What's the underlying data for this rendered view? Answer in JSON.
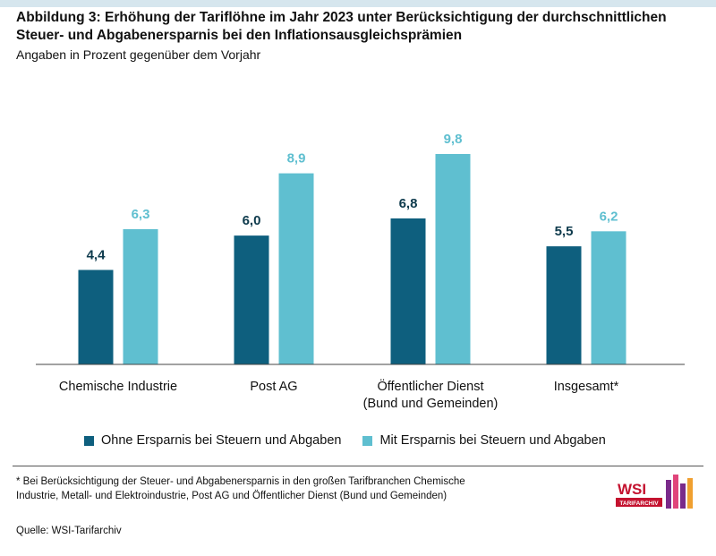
{
  "header": {
    "title": "Abbildung 3: Erhöhung der Tariflöhne im Jahr 2023 unter Berücksichtigung der durchschnittlichen Steuer- und Abgabenersparnis bei den Inflationsausgleichsprämien",
    "subtitle": "Angaben in Prozent gegenüber dem Vorjahr"
  },
  "chart_data": {
    "type": "bar",
    "categories": [
      [
        "Chemische Industrie"
      ],
      [
        "Post AG"
      ],
      [
        "Öffentlicher Dienst",
        "(Bund und Gemeinden)"
      ],
      [
        "Insgesamt*"
      ]
    ],
    "series": [
      {
        "name": "Ohne Ersparnis bei Steuern und Abgaben",
        "values": [
          4.4,
          6.0,
          6.8,
          5.5
        ],
        "labels": [
          "4,4",
          "6,0",
          "6,8",
          "5,5"
        ],
        "color": "#0e5f7e"
      },
      {
        "name": "Mit Ersparnis bei Steuern und Abgaben",
        "values": [
          6.3,
          8.9,
          9.8,
          6.2
        ],
        "labels": [
          "6,3",
          "8,9",
          "9,8",
          "6,2"
        ],
        "color": "#5fbfd0"
      }
    ],
    "ylim": [
      0,
      10
    ],
    "grid": false,
    "legend_position": "bottom"
  },
  "footer": {
    "footnote_line1": "* Bei Berücksichtigung der Steuer- und Abgabenersparnis in den großen Tarifbranchen Chemische",
    "footnote_line2": "Industrie, Metall- und Elektroindustrie, Post AG und Öffentlicher Dienst (Bund und Gemeinden)",
    "source": "Quelle: WSI-Tarifarchiv"
  },
  "logo": {
    "text": "WSI",
    "subtext": "TARIFARCHIV",
    "color": "#c4122f",
    "accent_colors": [
      "#7a2a8a",
      "#e0457b",
      "#f0a030"
    ]
  }
}
